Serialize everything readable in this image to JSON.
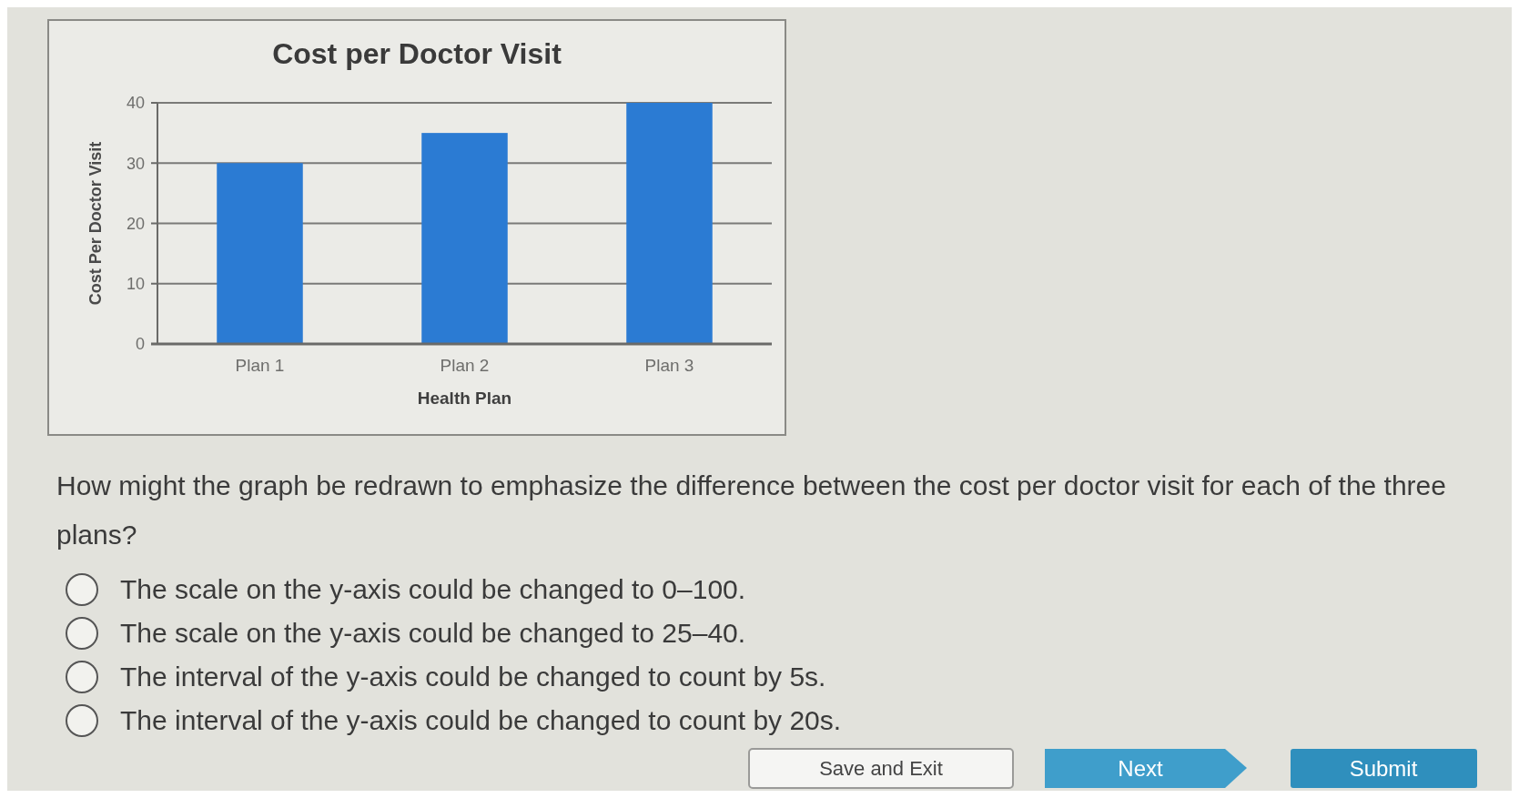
{
  "chart_data": {
    "type": "bar",
    "title": "Cost per Doctor Visit",
    "xlabel": "Health Plan",
    "ylabel": "Cost Per Doctor Visit",
    "categories": [
      "Plan 1",
      "Plan 2",
      "Plan 3"
    ],
    "values": [
      30,
      35,
      40
    ],
    "color": "#2b7bd3",
    "ylim": [
      0,
      40
    ],
    "yticks": [
      0,
      10,
      20,
      30,
      40
    ],
    "grid": "y",
    "annotations": [
      "How might the graph be redrawn to emphasize the difference between the cost per doctor visit for each of the three plans?",
      "The scale on the y-axis could be changed to 0–100.",
      "The scale on the y-axis could be changed to 25–40.",
      "The interval of the y-axis could be changed to count by 5s.",
      "The interval of the y-axis could be changed to count by 20s.",
      "Save and Exit",
      "Next",
      "Submit"
    ]
  }
}
